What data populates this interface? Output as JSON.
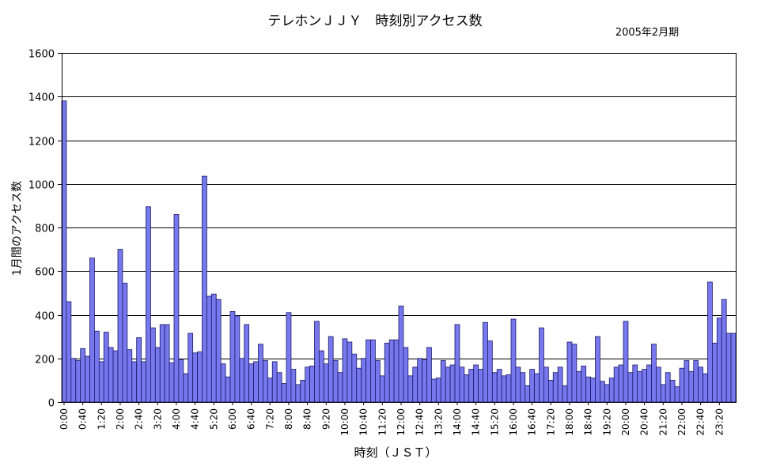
{
  "chart_data": {
    "type": "bar",
    "title": "テレホンＪＪＹ　時刻別アクセス数",
    "subtitle": "2005年2月期",
    "xlabel": "時刻（ＪＳＴ）",
    "ylabel": "1月間のアクセス数",
    "ylim": [
      0,
      1600
    ],
    "y_ticks": [
      0,
      200,
      400,
      600,
      800,
      1000,
      1200,
      1400,
      1600
    ],
    "grid": true,
    "legend": "none",
    "bar_color": "#7777ee",
    "bar_edge_color": "#1a1a66",
    "tick_labels": [
      "0:00",
      "0:40",
      "1:20",
      "2:00",
      "2:40",
      "3:20",
      "4:00",
      "4:40",
      "5:20",
      "6:00",
      "6:40",
      "7:20",
      "8:00",
      "8:40",
      "9:20",
      "10:00",
      "10:40",
      "11:20",
      "12:00",
      "12:40",
      "13:20",
      "14:00",
      "14:40",
      "15:20",
      "16:00",
      "16:40",
      "17:20",
      "18:00",
      "18:40",
      "19:20",
      "20:00",
      "20:40",
      "21:20",
      "22:00",
      "22:40",
      "23:20"
    ],
    "tick_label_every": 4,
    "bin_minutes": 10,
    "values": [
      1380,
      460,
      200,
      190,
      245,
      210,
      660,
      325,
      185,
      320,
      250,
      235,
      700,
      545,
      240,
      185,
      295,
      185,
      895,
      340,
      250,
      355,
      355,
      180,
      860,
      195,
      130,
      315,
      225,
      230,
      1035,
      485,
      495,
      470,
      175,
      115,
      415,
      395,
      200,
      355,
      175,
      185,
      265,
      190,
      110,
      185,
      135,
      85,
      410,
      150,
      80,
      100,
      160,
      165,
      370,
      235,
      175,
      300,
      190,
      135,
      290,
      275,
      220,
      155,
      200,
      285,
      285,
      190,
      120,
      270,
      285,
      285,
      440,
      250,
      120,
      160,
      200,
      195,
      250,
      105,
      110,
      190,
      160,
      170,
      355,
      160,
      125,
      150,
      170,
      150,
      365,
      280,
      135,
      150,
      120,
      125,
      380,
      160,
      135,
      75,
      150,
      130,
      340,
      160,
      100,
      135,
      160,
      75,
      275,
      265,
      140,
      165,
      115,
      110,
      300,
      95,
      80,
      110,
      160,
      170,
      370,
      135,
      170,
      140,
      150,
      170,
      265,
      160,
      80,
      135,
      100,
      70,
      155,
      190,
      140,
      190,
      160,
      130,
      550,
      270,
      385,
      470,
      315,
      315
    ]
  }
}
